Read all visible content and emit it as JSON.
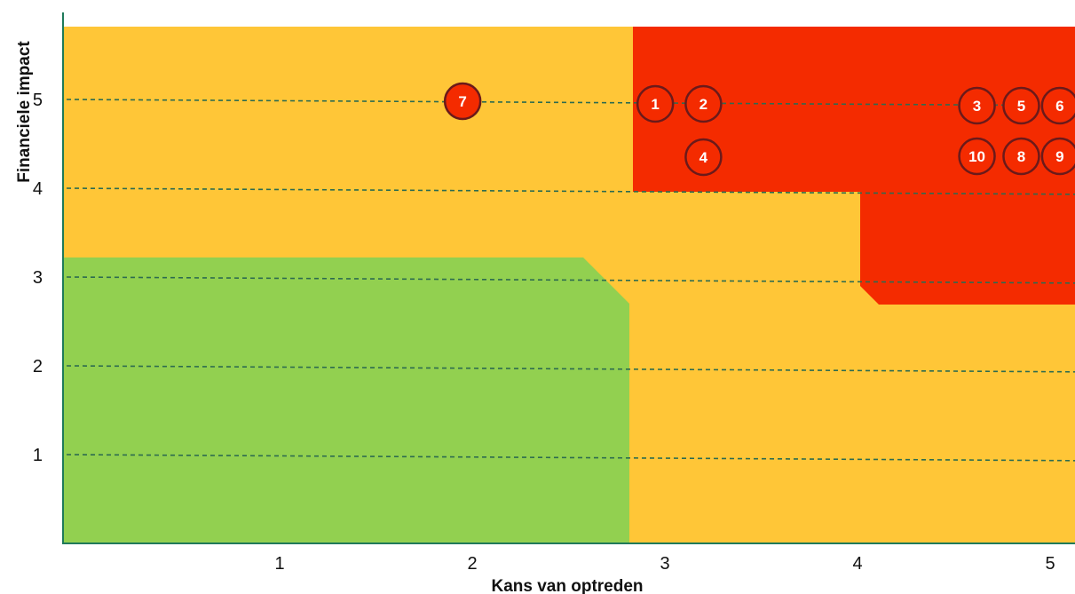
{
  "chart_data": {
    "type": "scatter",
    "title": "",
    "xlabel": "Kans van optreden",
    "ylabel": "Financiele impact",
    "x_ticks": [
      "1",
      "2",
      "3",
      "4",
      "5"
    ],
    "y_ticks": [
      "1",
      "2",
      "3",
      "4",
      "5"
    ],
    "grid": "dashed horizontal lines at y = 1, 2, 3, 4, 5",
    "zones": [
      {
        "name": "green",
        "color": "#92d050"
      },
      {
        "name": "orange",
        "color": "#ffc637"
      },
      {
        "name": "red",
        "color": "#f42b00"
      }
    ],
    "points": [
      {
        "label": "1",
        "x": 2.95,
        "y": 4.95
      },
      {
        "label": "2",
        "x": 3.2,
        "y": 4.95
      },
      {
        "label": "4",
        "x": 3.2,
        "y": 4.35
      },
      {
        "label": "7",
        "x": 1.95,
        "y": 4.98
      },
      {
        "label": "3",
        "x": 4.62,
        "y": 4.93
      },
      {
        "label": "5",
        "x": 4.85,
        "y": 4.93
      },
      {
        "label": "6",
        "x": 5.05,
        "y": 4.93
      },
      {
        "label": "10",
        "x": 4.62,
        "y": 4.36
      },
      {
        "label": "8",
        "x": 4.85,
        "y": 4.36
      },
      {
        "label": "9",
        "x": 5.05,
        "y": 4.36
      }
    ],
    "marker_fill_color": "#f42b00",
    "marker_stroke_color": "#6b1a1a",
    "axis_color": "#1f7a5a",
    "grid_color": "#2d6b4f"
  }
}
